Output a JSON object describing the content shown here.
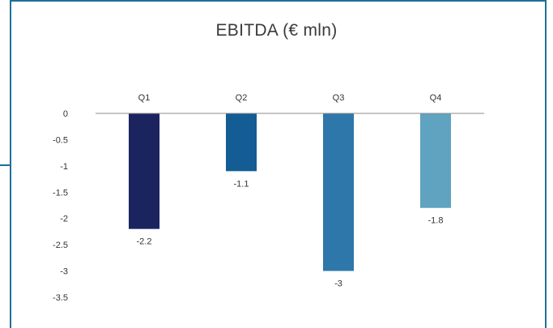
{
  "chart_data": {
    "type": "bar",
    "title": "EBITDA (€ mln)",
    "categories": [
      "Q1",
      "Q2",
      "Q3",
      "Q4"
    ],
    "values": [
      -2.2,
      -1.1,
      -3,
      -1.8
    ],
    "data_labels": [
      "-2.2",
      "-1.1",
      "-3",
      "-1.8"
    ],
    "y_ticks": [
      "0",
      "-0.5",
      "-1",
      "-1.5",
      "-2",
      "-2.5",
      "-3",
      "-3.5"
    ],
    "ylim": [
      -3.5,
      0
    ],
    "colors": [
      "#1c2460",
      "#135d94",
      "#2e77aa",
      "#5fa3c0"
    ],
    "grid": false,
    "legend": "none"
  }
}
